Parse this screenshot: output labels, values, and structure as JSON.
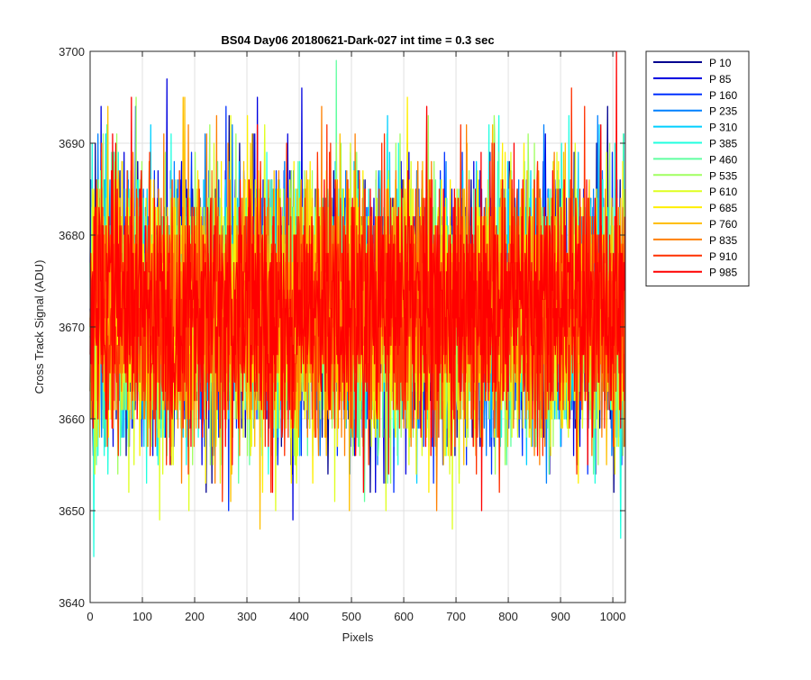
{
  "chart_data": {
    "type": "line",
    "title": "BS04 Day06 20180621-Dark-027 int time = 0.3 sec",
    "xlabel": "Pixels",
    "ylabel": "Cross Track Signal (ADU)",
    "xlim": [
      0,
      1024
    ],
    "ylim": [
      3640,
      3700
    ],
    "xticks": [
      0,
      100,
      200,
      300,
      400,
      500,
      600,
      700,
      800,
      900,
      1000
    ],
    "yticks": [
      3640,
      3650,
      3660,
      3670,
      3680,
      3690,
      3700
    ],
    "xtick_labels": [
      "0",
      "100",
      "200",
      "300",
      "400",
      "500",
      "600",
      "700",
      "800",
      "900",
      "1000"
    ],
    "ytick_labels": [
      "3640",
      "3650",
      "3660",
      "3670",
      "3680",
      "3690",
      "3700"
    ],
    "grid": true,
    "legend_position": "outside-top-right",
    "noise": {
      "mean": 3672,
      "std": 7,
      "min": 3642,
      "max": 3700,
      "points_per_series": 1024
    },
    "series": [
      {
        "name": "P 10",
        "color": "#00008f"
      },
      {
        "name": "P 85",
        "color": "#0000df"
      },
      {
        "name": "P 160",
        "color": "#0030ff"
      },
      {
        "name": "P 235",
        "color": "#0080ff"
      },
      {
        "name": "P 310",
        "color": "#00cfff"
      },
      {
        "name": "P 385",
        "color": "#20ffdf"
      },
      {
        "name": "P 460",
        "color": "#60ffa0"
      },
      {
        "name": "P 535",
        "color": "#a0ff60"
      },
      {
        "name": "P 610",
        "color": "#dfff20"
      },
      {
        "name": "P 685",
        "color": "#ffef00"
      },
      {
        "name": "P 760",
        "color": "#ffbf00"
      },
      {
        "name": "P 835",
        "color": "#ff8000"
      },
      {
        "name": "P 910",
        "color": "#ff3000"
      },
      {
        "name": "P 985",
        "color": "#ff0000"
      }
    ]
  }
}
